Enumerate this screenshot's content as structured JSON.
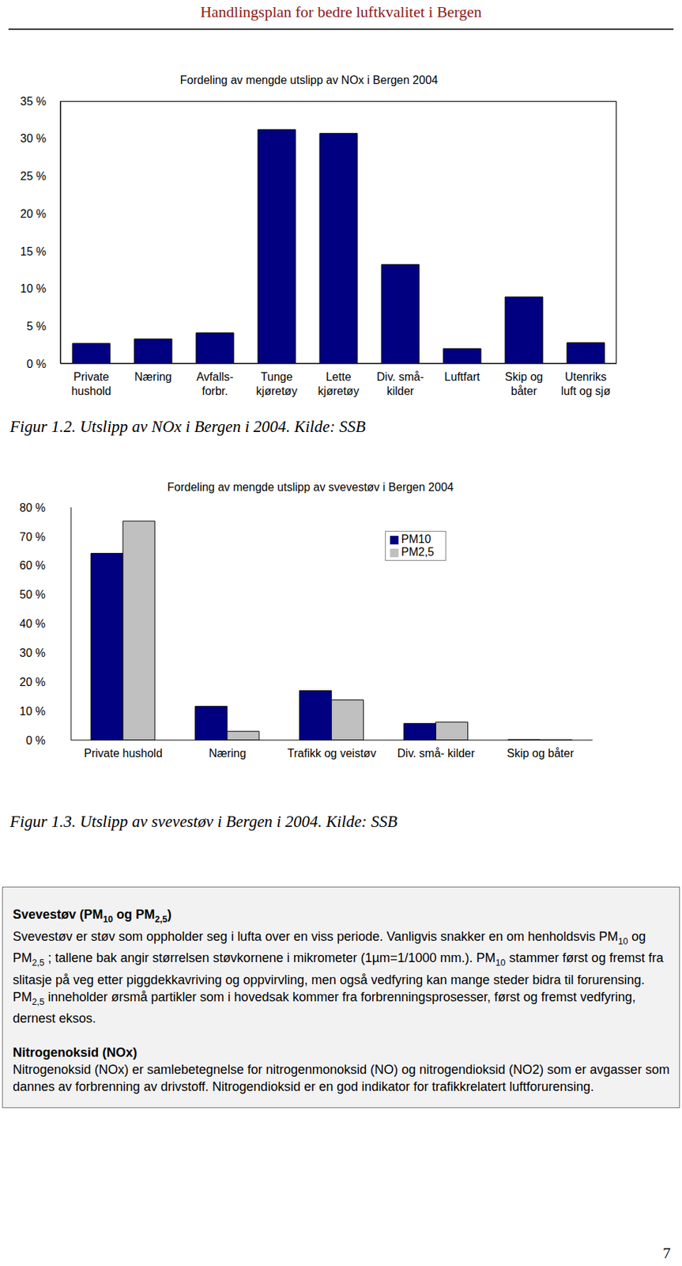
{
  "header": "Handlingsplan for bedre luftkvalitet i Bergen",
  "chart_data": [
    {
      "type": "bar",
      "title": "Fordeling av mengde utslipp av NOx i Bergen 2004",
      "categories": [
        "Private\nhushold",
        "Næring",
        "Avfalls-\nforbr.",
        "Tunge\nkjøretøy",
        "Lette\nkjøretøy",
        "Div. små-\nkilder",
        "Luftfart",
        "Skip og\nbåter",
        "Utenriks\nluft og sjø"
      ],
      "values": [
        2.7,
        3.3,
        4.1,
        31.2,
        30.7,
        13.2,
        2.0,
        8.9,
        2.8
      ],
      "color": "#000080",
      "ylim": [
        0,
        35
      ],
      "yticks": [
        {
          "value": 0,
          "label": "0 %"
        },
        {
          "value": 5,
          "label": "5 %"
        },
        {
          "value": 10,
          "label": "10 %"
        },
        {
          "value": 15,
          "label": "15 %"
        },
        {
          "value": 20,
          "label": "20 %"
        },
        {
          "value": 25,
          "label": "25 %"
        },
        {
          "value": 30,
          "label": "30 %"
        },
        {
          "value": 35,
          "label": "35 %"
        }
      ],
      "caption": "Figur 1.2. Utslipp av NOx i Bergen i 2004. Kilde: SSB"
    },
    {
      "type": "bar",
      "title": "Fordeling av mengde utslipp av svevestøv i Bergen 2004",
      "categories": [
        "Private hushold",
        "Næring",
        "Trafikk og veistøv",
        "Div. små- kilder",
        "Skip og båter"
      ],
      "series": [
        {
          "name": "PM10",
          "color": "#000080",
          "values": [
            64.2,
            11.6,
            17.0,
            5.7,
            0.2
          ]
        },
        {
          "name": "PM2,5",
          "color": "#c0c0c0",
          "values": [
            75.3,
            3.0,
            13.8,
            6.2,
            0.1
          ]
        }
      ],
      "ylim": [
        0,
        80
      ],
      "yticks": [
        {
          "value": 0,
          "label": "0 %"
        },
        {
          "value": 10,
          "label": "10 %"
        },
        {
          "value": 20,
          "label": "20 %"
        },
        {
          "value": 30,
          "label": "30 %"
        },
        {
          "value": 40,
          "label": "40 %"
        },
        {
          "value": 50,
          "label": "50 %"
        },
        {
          "value": 60,
          "label": "60 %"
        },
        {
          "value": 70,
          "label": "70 %"
        },
        {
          "value": 80,
          "label": "80 %"
        }
      ],
      "legend": "upper right",
      "caption": "Figur 1.3. Utslipp av svevestøv i Bergen i 2004. Kilde: SSB"
    }
  ],
  "textbox": {
    "sections": [
      {
        "heading": [
          "Svevestøv (PM",
          "10",
          " og PM",
          "2,5",
          ")"
        ],
        "body": [
          "Svevestøv er støv som oppholder seg i lufta over en viss periode. Vanligvis snakker en om henholdsvis PM",
          "10",
          " og PM",
          "2,5",
          " ; tallene bak angir størrelsen støvkornene i mikrometer (1µm=1/1000 mm.). PM",
          "10",
          " stammer først og fremst fra slitasje på veg etter piggdekkavriving og oppvirvling, men også vedfyring kan mange steder bidra til forurensing. PM",
          "2,5",
          " inneholder ørsmå partikler som i hovedsak kommer fra forbrenningsprosesser, først og fremst vedfyring, dernest eksos."
        ]
      },
      {
        "heading": [
          "Nitrogenoksid (NOx)"
        ],
        "body": [
          "Nitrogenoksid (NOx) er samlebetegnelse for nitrogenmonoksid (NO) og nitrogendioksid (NO2) som er avgasser som dannes av forbrenning av drivstoff.  Nitrogendioksid er en god indikator for trafikkrelatert luftforurensing."
        ]
      }
    ]
  },
  "page_number": 7
}
